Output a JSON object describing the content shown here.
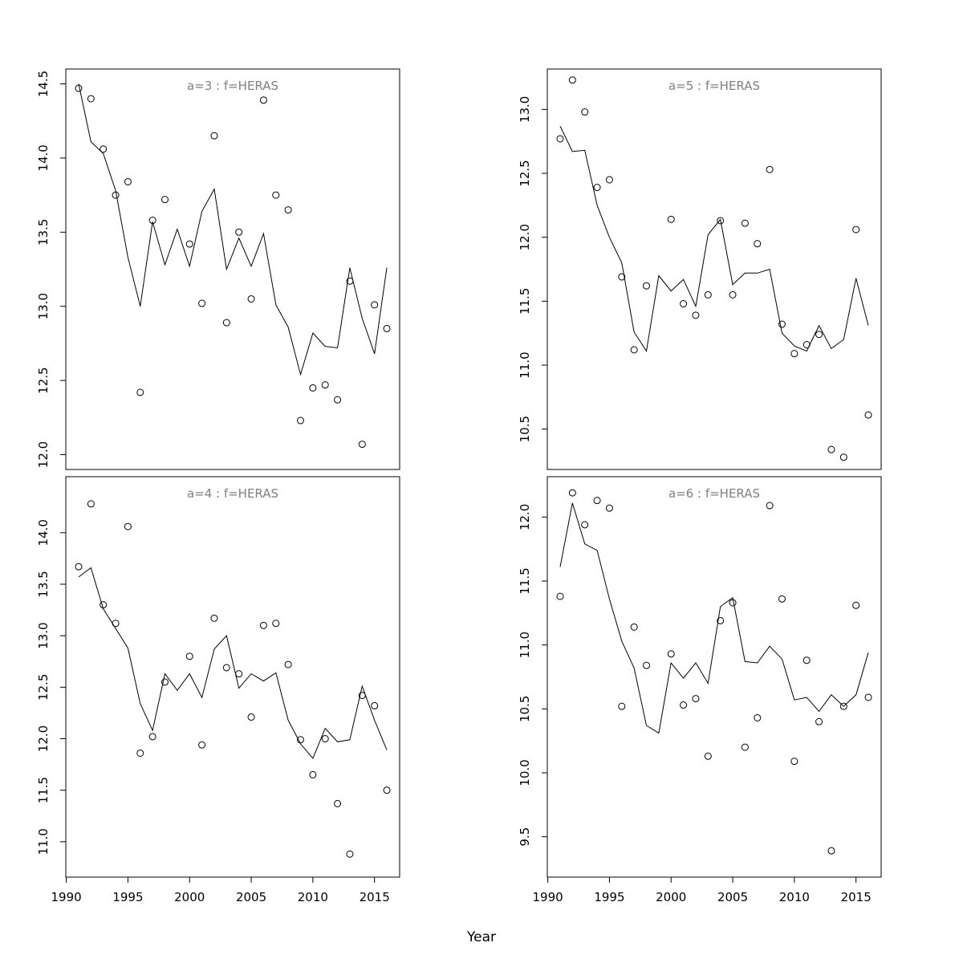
{
  "figure": {
    "xlabel": "Year"
  },
  "chart_data": [
    {
      "type": "scatter",
      "title": "a=3  :  f=HERAS",
      "xlim": [
        1990,
        2016
      ],
      "ylim": [
        12.0,
        14.5
      ],
      "x_ticks": [
        1990,
        1995,
        2000,
        2005,
        2010,
        2015
      ],
      "y_ticks": [
        "12.0",
        "12.5",
        "13.0",
        "13.5",
        "14.0",
        "14.5"
      ],
      "x_tick_labels_shown": false,
      "x": [
        1991,
        1992,
        1993,
        1994,
        1995,
        1996,
        1997,
        1998,
        1999,
        2000,
        2001,
        2002,
        2003,
        2004,
        2005,
        2006,
        2007,
        2008,
        2009,
        2010,
        2011,
        2012,
        2013,
        2014,
        2015,
        2016
      ],
      "series": [
        {
          "kind": "points",
          "values": [
            14.47,
            14.4,
            14.06,
            13.75,
            13.84,
            12.42,
            13.58,
            13.72,
            null,
            13.42,
            13.02,
            14.15,
            12.89,
            13.5,
            13.05,
            14.39,
            13.75,
            13.65,
            12.23,
            12.45,
            12.47,
            12.37,
            13.17,
            12.07,
            13.01,
            12.85
          ]
        },
        {
          "kind": "line",
          "values": [
            14.5,
            14.11,
            14.03,
            13.78,
            13.33,
            13.0,
            13.57,
            13.28,
            13.52,
            13.27,
            13.64,
            13.79,
            13.25,
            13.46,
            13.27,
            13.49,
            13.01,
            12.86,
            12.54,
            12.82,
            12.73,
            12.72,
            13.26,
            12.92,
            12.68,
            13.26
          ]
        }
      ]
    },
    {
      "type": "scatter",
      "title": "a=5  :  f=HERAS",
      "xlim": [
        1990,
        2016
      ],
      "ylim": [
        10.3,
        13.2
      ],
      "x_ticks": [
        1990,
        1995,
        2000,
        2005,
        2010,
        2015
      ],
      "y_ticks": [
        "10.5",
        "11.0",
        "11.5",
        "12.0",
        "12.5",
        "13.0"
      ],
      "x_tick_labels_shown": false,
      "x": [
        1991,
        1992,
        1993,
        1994,
        1995,
        1996,
        1997,
        1998,
        1999,
        2000,
        2001,
        2002,
        2003,
        2004,
        2005,
        2006,
        2007,
        2008,
        2009,
        2010,
        2011,
        2012,
        2013,
        2014,
        2015,
        2016
      ],
      "series": [
        {
          "kind": "points",
          "values": [
            12.77,
            13.23,
            12.98,
            12.39,
            12.45,
            11.69,
            11.12,
            11.62,
            null,
            12.14,
            11.48,
            11.39,
            11.55,
            12.13,
            11.55,
            12.11,
            11.95,
            12.53,
            11.32,
            11.09,
            11.16,
            11.24,
            10.34,
            10.28,
            12.06,
            10.61
          ]
        },
        {
          "kind": "line",
          "values": [
            12.87,
            12.67,
            12.68,
            12.25,
            12.0,
            11.8,
            11.26,
            11.11,
            11.7,
            11.58,
            11.67,
            11.46,
            12.02,
            12.14,
            11.63,
            11.72,
            11.72,
            11.75,
            11.25,
            11.15,
            11.11,
            11.31,
            11.13,
            11.2,
            11.68,
            11.31
          ]
        }
      ]
    },
    {
      "type": "scatter",
      "title": "a=4  :  f=HERAS",
      "xlim": [
        1990,
        2016
      ],
      "ylim": [
        10.8,
        14.4
      ],
      "x_ticks": [
        1990,
        1995,
        2000,
        2005,
        2010,
        2015
      ],
      "y_ticks": [
        "11.0",
        "11.5",
        "12.0",
        "12.5",
        "13.0",
        "13.5",
        "14.0"
      ],
      "x_tick_labels_shown": true,
      "x": [
        1991,
        1992,
        1993,
        1994,
        1995,
        1996,
        1997,
        1998,
        1999,
        2000,
        2001,
        2002,
        2003,
        2004,
        2005,
        2006,
        2007,
        2008,
        2009,
        2010,
        2011,
        2012,
        2013,
        2014,
        2015,
        2016
      ],
      "series": [
        {
          "kind": "points",
          "values": [
            13.67,
            14.28,
            13.3,
            13.12,
            14.06,
            11.86,
            12.02,
            12.55,
            null,
            12.8,
            11.94,
            13.17,
            12.69,
            12.63,
            12.21,
            13.1,
            13.12,
            12.72,
            11.99,
            11.65,
            12.0,
            11.37,
            10.88,
            12.42,
            12.32,
            11.5
          ]
        },
        {
          "kind": "line",
          "values": [
            13.57,
            13.66,
            13.26,
            13.07,
            12.88,
            12.34,
            12.08,
            12.63,
            12.47,
            12.63,
            12.4,
            12.87,
            13.0,
            12.49,
            12.63,
            12.56,
            12.64,
            12.18,
            11.95,
            11.81,
            12.1,
            11.97,
            11.99,
            12.51,
            12.18,
            11.89
          ]
        }
      ]
    },
    {
      "type": "scatter",
      "title": "a=6  :  f=HERAS",
      "xlim": [
        1990,
        2016
      ],
      "ylim": [
        9.3,
        12.2
      ],
      "x_ticks": [
        1990,
        1995,
        2000,
        2005,
        2010,
        2015
      ],
      "y_ticks": [
        "9.5",
        "10.0",
        "10.5",
        "11.0",
        "11.5",
        "12.0"
      ],
      "x_tick_labels_shown": true,
      "x": [
        1991,
        1992,
        1993,
        1994,
        1995,
        1996,
        1997,
        1998,
        1999,
        2000,
        2001,
        2002,
        2003,
        2004,
        2005,
        2006,
        2007,
        2008,
        2009,
        2010,
        2011,
        2012,
        2013,
        2014,
        2015,
        2016
      ],
      "series": [
        {
          "kind": "points",
          "values": [
            11.38,
            12.19,
            11.94,
            12.13,
            12.07,
            10.52,
            11.14,
            10.84,
            null,
            10.93,
            10.53,
            10.58,
            10.13,
            11.19,
            11.33,
            10.2,
            10.43,
            12.09,
            11.36,
            10.09,
            10.88,
            10.4,
            9.39,
            10.52,
            11.31,
            10.59
          ]
        },
        {
          "kind": "line",
          "values": [
            11.61,
            12.11,
            11.79,
            11.74,
            11.36,
            11.03,
            10.82,
            10.37,
            10.31,
            10.86,
            10.74,
            10.86,
            10.7,
            11.3,
            11.37,
            10.87,
            10.86,
            10.99,
            10.89,
            10.57,
            10.59,
            10.48,
            10.61,
            10.52,
            10.61,
            10.94
          ]
        }
      ]
    }
  ]
}
